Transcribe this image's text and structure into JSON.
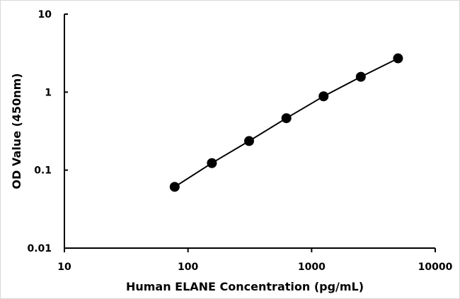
{
  "chart_data": {
    "type": "scatter",
    "title": "",
    "xlabel": "Human ELANE Concentration (pg/mL)",
    "ylabel": "OD Value (450nm)",
    "xscale": "log",
    "yscale": "log",
    "xlim": [
      10,
      10000
    ],
    "ylim": [
      0.01,
      10
    ],
    "x_ticks": [
      10,
      100,
      1000,
      10000
    ],
    "x_tick_labels": [
      "10",
      "100",
      "1000",
      "10000"
    ],
    "y_ticks": [
      0.01,
      0.1,
      1,
      10
    ],
    "y_tick_labels": [
      "0.01",
      "0.1",
      "1",
      "10"
    ],
    "grid": false,
    "legend": "none",
    "series": [
      {
        "x": [
          78,
          156,
          312,
          625,
          1250,
          2500,
          5000
        ],
        "y": [
          0.061,
          0.123,
          0.236,
          0.463,
          0.884,
          1.572,
          2.71
        ],
        "marker": "circle",
        "line": true,
        "color": "#000000"
      }
    ]
  }
}
